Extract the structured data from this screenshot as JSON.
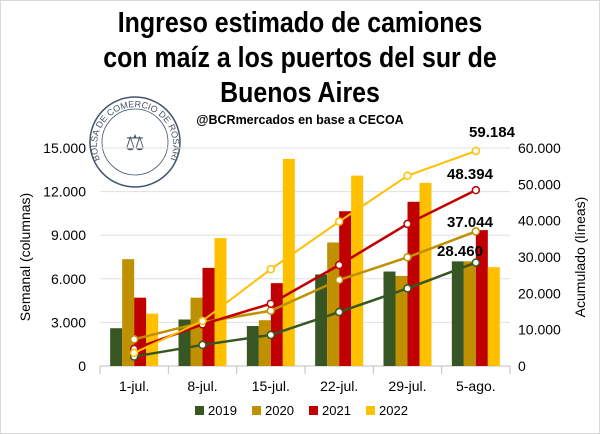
{
  "chart_data": {
    "type": "bar",
    "title": "Ingreso estimado de camiones con maíz a los puertos del sur de Buenos Aires",
    "subtitle": "@BCRmercados en base a CECOA",
    "logo_text": "BOLSA DE COMERCIO DE ROSARIO",
    "categories": [
      "1-jul.",
      "8-jul.",
      "15-jul.",
      "22-jul.",
      "29-jul.",
      "5-ago."
    ],
    "ylabel": "Semanal (columnas)",
    "y2label": "Acumulado (líneas)",
    "ylim": [
      0,
      15000
    ],
    "y2lim": [
      0,
      60000
    ],
    "yticks": [
      "0",
      "3.000",
      "6.000",
      "9.000",
      "12.000",
      "15.000"
    ],
    "y2ticks": [
      "0",
      "10.000",
      "20.000",
      "30.000",
      "40.000",
      "50.000",
      "60.000"
    ],
    "grid": true,
    "legend_position": "bottom",
    "series": [
      {
        "name": "2019",
        "color": "#375623",
        "values": [
          2600,
          3200,
          2750,
          6300,
          6500,
          7200
        ],
        "cumulative": [
          2600,
          5800,
          8550,
          14850,
          21350,
          28460
        ],
        "end_label": "28.460"
      },
      {
        "name": "2020",
        "color": "#BF9000",
        "values": [
          7350,
          4700,
          3150,
          8500,
          6200,
          7200
        ],
        "cumulative": [
          7350,
          12050,
          15200,
          23700,
          29900,
          37044
        ],
        "end_label": "37.044"
      },
      {
        "name": "2021",
        "color": "#C00000",
        "values": [
          4700,
          6750,
          5700,
          10650,
          11300,
          9350
        ],
        "cumulative": [
          4700,
          11450,
          17150,
          27800,
          39100,
          48394
        ],
        "end_label": "48.394"
      },
      {
        "name": "2022",
        "color": "#FFC000",
        "values": [
          3600,
          8800,
          14250,
          13100,
          12600,
          6800
        ],
        "cumulative": [
          3600,
          12400,
          26650,
          39750,
          52350,
          59184
        ],
        "end_label": "59.184"
      }
    ]
  }
}
